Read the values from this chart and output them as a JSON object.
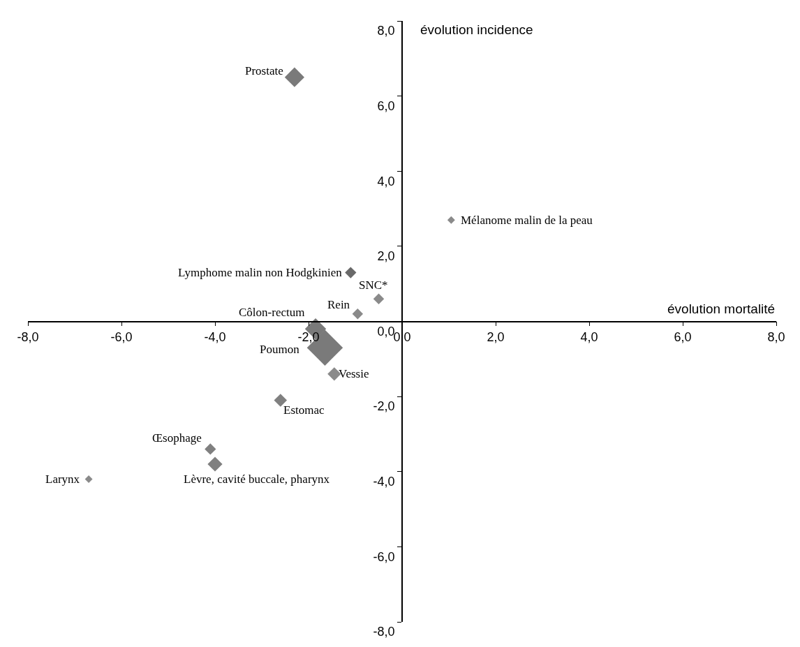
{
  "chart_data": {
    "type": "bubble",
    "xlabel": "évolution mortalité",
    "ylabel": "évolution incidence",
    "marker": "diamond",
    "x": [
      -2.3,
      1.05,
      -1.1,
      -0.5,
      -0.95,
      -1.85,
      -1.65,
      -1.45,
      -2.6,
      -4.1,
      -4.0,
      -6.7
    ],
    "values": [
      6.5,
      2.7,
      1.3,
      0.6,
      0.2,
      -0.2,
      -0.7,
      -1.4,
      -2.1,
      -3.4,
      -3.8,
      -4.2
    ],
    "sizes": [
      0.3,
      0.045,
      0.1,
      0.09,
      0.09,
      0.35,
      1,
      0.14,
      0.13,
      0.1,
      0.17,
      0.045
    ],
    "colors": [
      "#7a7a7a",
      "#8a8a8a",
      "#696969",
      "#8a8a8a",
      "#8a8a8a",
      "#7a7a7a",
      "#7a7a7a",
      "#8a8a8a",
      "#808080",
      "#808080",
      "#808080",
      "#8a8a8a"
    ],
    "annotations": [
      {
        "text": "Prostate",
        "x": -2.3,
        "y": 6.5
      },
      {
        "text": "Mélanome malin de la peau",
        "x": 1.05,
        "y": 2.7
      },
      {
        "text": "Lymphome malin non Hodgkinien",
        "x": -1.1,
        "y": 1.3
      },
      {
        "text": "SNC*",
        "x": -0.5,
        "y": 0.6
      },
      {
        "text": "Rein",
        "x": -0.95,
        "y": 0.2
      },
      {
        "text": "Côlon-rectum",
        "x": -1.85,
        "y": -0.2
      },
      {
        "text": "Poumon",
        "x": -1.65,
        "y": -0.7
      },
      {
        "text": "Vessie",
        "x": -1.45,
        "y": -1.4
      },
      {
        "text": "Estomac",
        "x": -2.6,
        "y": -2.1
      },
      {
        "text": "Œsophage",
        "x": -4.1,
        "y": -3.4
      },
      {
        "text": "Lèvre, cavité buccale, pharynx",
        "x": -4.0,
        "y": -3.8
      },
      {
        "text": "Larynx",
        "x": -6.7,
        "y": -4.2
      }
    ],
    "xlim": [
      -8,
      8
    ],
    "ylim": [
      -8,
      8
    ],
    "xticks": [
      {
        "value": -8,
        "label": "-8,0"
      },
      {
        "value": -6,
        "label": "-6,0"
      },
      {
        "value": -4,
        "label": "-4,0"
      },
      {
        "value": -2,
        "label": "-2,0"
      },
      {
        "value": 0,
        "label": "0,0"
      },
      {
        "value": 2,
        "label": "2,0"
      },
      {
        "value": 4,
        "label": "4,0"
      },
      {
        "value": 6,
        "label": "6,0"
      },
      {
        "value": 8,
        "label": "8,0"
      }
    ],
    "yticks": [
      {
        "value": -8,
        "label": "-8,0"
      },
      {
        "value": -6,
        "label": "-6,0"
      },
      {
        "value": -4,
        "label": "-4,0"
      },
      {
        "value": -2,
        "label": "-2,0"
      },
      {
        "value": 0,
        "label": "0,0"
      },
      {
        "value": 2,
        "label": "2,0"
      },
      {
        "value": 4,
        "label": "4,0"
      },
      {
        "value": 6,
        "label": "6,0"
      },
      {
        "value": 8,
        "label": "8,0"
      }
    ]
  }
}
